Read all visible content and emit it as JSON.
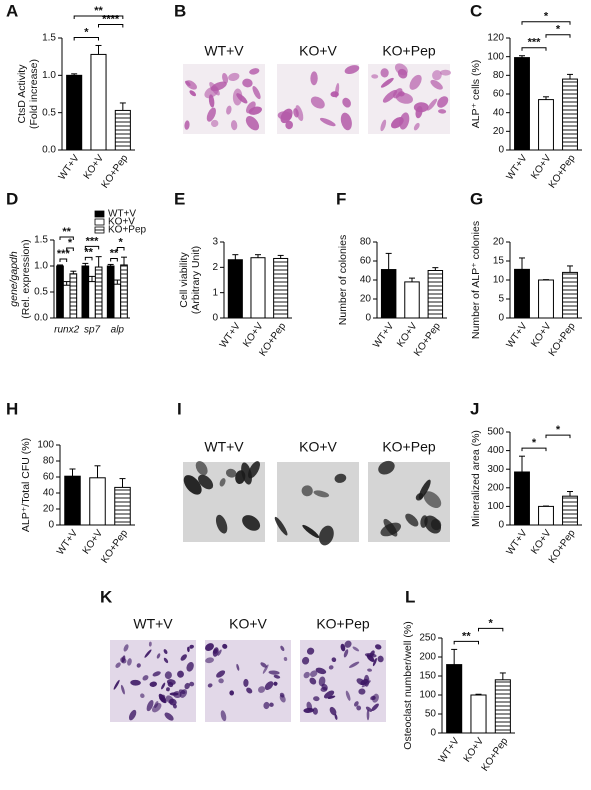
{
  "chart_data": [
    {
      "type": "bar",
      "panel": "A",
      "ylabel": [
        "CtsD Activity",
        "(Fold increase)"
      ],
      "categories": [
        "WT+V",
        "KO+V",
        "KO+Pep"
      ],
      "values": [
        1.0,
        1.28,
        0.53
      ],
      "errors": [
        0.02,
        0.12,
        0.1
      ],
      "fills": [
        "#000000",
        "#ffffff",
        "hatch"
      ],
      "ylim": [
        0,
        1.5
      ],
      "yticks": [
        {
          "value": 0,
          "label": "0.0"
        },
        0.5,
        {
          "value": 1,
          "label": "1.0"
        },
        1.5
      ],
      "significance": [
        {
          "from": 0,
          "to": 1,
          "label": "*"
        },
        {
          "from": 1,
          "to": 2,
          "label": "****"
        },
        {
          "from": 0,
          "to": 2,
          "label": "**"
        }
      ]
    },
    {
      "type": "bar",
      "panel": "C",
      "ylabel": [
        "ALP⁺ cells (%)"
      ],
      "categories": [
        "WT+V",
        "KO+V",
        "KO+Pep"
      ],
      "values": [
        99,
        54,
        76
      ],
      "errors": [
        2,
        3,
        5
      ],
      "fills": [
        "#000000",
        "#ffffff",
        "hatch"
      ],
      "ylim": [
        0,
        120
      ],
      "yticks": [
        0,
        20,
        40,
        60,
        80,
        100,
        120
      ],
      "significance": [
        {
          "from": 0,
          "to": 1,
          "label": "***"
        },
        {
          "from": 1,
          "to": 2,
          "label": "*"
        },
        {
          "from": 0,
          "to": 2,
          "label": "*"
        }
      ]
    },
    {
      "type": "grouped_bar",
      "panel": "D",
      "ylabel": [
        "gene/gapdh",
        "(Rel. expression)"
      ],
      "categories": [
        "runx2",
        "sp7",
        "alp"
      ],
      "italic_categories": true,
      "series": [
        {
          "name": "WT+V",
          "color": "#000000",
          "values": [
            1.0,
            1.0,
            1.0
          ],
          "errors": [
            0.02,
            0.05,
            0.03
          ]
        },
        {
          "name": "KO+V",
          "color": "#ffffff",
          "values": [
            0.63,
            0.7,
            0.65
          ],
          "errors": [
            0.07,
            0.1,
            0.08
          ]
        },
        {
          "name": "KO+Pep",
          "color": "hatch",
          "values": [
            0.85,
            0.98,
            1.02
          ],
          "errors": [
            0.05,
            0.2,
            0.15
          ]
        }
      ],
      "ylim": [
        0,
        1.5
      ],
      "yticks": [
        {
          "value": 0,
          "label": "0.0"
        },
        0.5,
        {
          "value": 1,
          "label": "1.0"
        },
        1.5
      ],
      "significance": [
        {
          "group": 0,
          "from": 0,
          "to": 1,
          "label": "***"
        },
        {
          "group": 0,
          "from": 1,
          "to": 2,
          "label": "*"
        },
        {
          "group": 0,
          "from": 0,
          "to": 2,
          "label": "**"
        },
        {
          "group": 1,
          "from": 0,
          "to": 1,
          "label": "**"
        },
        {
          "group": 1,
          "from": 0,
          "to": 2,
          "label": "***"
        },
        {
          "group": 2,
          "from": 0,
          "to": 1,
          "label": "**"
        },
        {
          "group": 2,
          "from": 1,
          "to": 2,
          "label": "*"
        }
      ]
    },
    {
      "type": "bar",
      "panel": "E",
      "ylabel": [
        "Cell viability",
        "(Arbitrary Unit)"
      ],
      "categories": [
        "WT+V",
        "KO+V",
        "KO+Pep"
      ],
      "values": [
        2.3,
        2.38,
        2.35
      ],
      "errors": [
        0.2,
        0.12,
        0.12
      ],
      "fills": [
        "#000000",
        "#ffffff",
        "hatch"
      ],
      "ylim": [
        0,
        3
      ],
      "yticks": [
        0,
        1,
        2,
        3
      ]
    },
    {
      "type": "bar",
      "panel": "F",
      "ylabel": [
        "Number of colonies"
      ],
      "categories": [
        "WT+V",
        "KO+V",
        "KO+Pep"
      ],
      "values": [
        51,
        38,
        50
      ],
      "errors": [
        17,
        4,
        3
      ],
      "fills": [
        "#000000",
        "#ffffff",
        "hatch"
      ],
      "ylim": [
        0,
        80
      ],
      "yticks": [
        0,
        20,
        40,
        60,
        80
      ]
    },
    {
      "type": "bar",
      "panel": "G",
      "ylabel": [
        "Number of ALP⁺ colonies"
      ],
      "categories": [
        "WT+V",
        "KO+V",
        "KO+Pep"
      ],
      "values": [
        12.8,
        10,
        12
      ],
      "errors": [
        3,
        0.1,
        1.7
      ],
      "fills": [
        "#000000",
        "#ffffff",
        "hatch"
      ],
      "ylim": [
        0,
        20
      ],
      "yticks": [
        0,
        5,
        10,
        15,
        20
      ]
    },
    {
      "type": "bar",
      "panel": "H",
      "ylabel": [
        "ALP⁺/Total CFU (%)"
      ],
      "categories": [
        "WT+V",
        "KO+V",
        "KO+Pep"
      ],
      "values": [
        61,
        59,
        47
      ],
      "errors": [
        9,
        15,
        11
      ],
      "fills": [
        "#000000",
        "#ffffff",
        "hatch"
      ],
      "ylim": [
        0,
        100
      ],
      "yticks": [
        0,
        20,
        40,
        60,
        80,
        100
      ]
    },
    {
      "type": "bar",
      "panel": "J",
      "ylabel": [
        "Mineralized area (%)"
      ],
      "categories": [
        "WT+V",
        "KO+V",
        "KO+Pep"
      ],
      "values": [
        285,
        100,
        155
      ],
      "errors": [
        85,
        2,
        25
      ],
      "fills": [
        "#000000",
        "#ffffff",
        "hatch"
      ],
      "ylim": [
        0,
        500
      ],
      "yticks": [
        0,
        100,
        200,
        300,
        400,
        500
      ],
      "significance": [
        {
          "from": 0,
          "to": 1,
          "label": "*"
        },
        {
          "from": 1,
          "to": 2,
          "label": "*"
        }
      ]
    },
    {
      "type": "bar",
      "panel": "L",
      "ylabel": [
        "Osteoclast number/well (%)"
      ],
      "categories": [
        "WT+V",
        "KO+V",
        "KO+Pep"
      ],
      "values": [
        180,
        100,
        140
      ],
      "errors": [
        40,
        2,
        18
      ],
      "fills": [
        "#000000",
        "#ffffff",
        "hatch"
      ],
      "ylim": [
        0,
        250
      ],
      "yticks": [
        0,
        50,
        100,
        150,
        200,
        250
      ],
      "significance": [
        {
          "from": 0,
          "to": 1,
          "label": "**"
        },
        {
          "from": 1,
          "to": 2,
          "label": "*"
        }
      ]
    }
  ],
  "image_panels": [
    {
      "panel": "B",
      "labels": [
        "WT+V",
        "KO+V",
        "KO+Pep"
      ]
    },
    {
      "panel": "I",
      "labels": [
        "WT+V",
        "KO+V",
        "KO+Pep"
      ]
    },
    {
      "panel": "K",
      "labels": [
        "WT+V",
        "KO+V",
        "KO+Pep"
      ]
    }
  ]
}
